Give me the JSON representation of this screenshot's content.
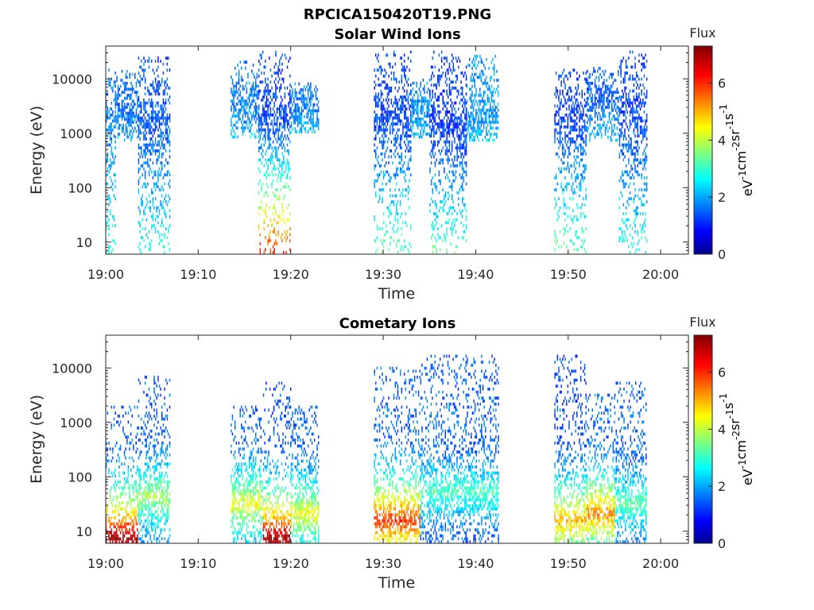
{
  "figure": {
    "title": "RPCICA150420T19.PNG",
    "colorbar_title": "Flux",
    "colorbar_unit_parts": [
      "eV",
      "-1",
      "cm",
      "-2",
      "sr",
      "-1",
      "s",
      "-1"
    ]
  },
  "chart_data": [
    {
      "type": "heatmap",
      "title": "Solar Wind Ions",
      "xlabel": "Time",
      "ylabel": "Energy (eV)",
      "y_scale": "log",
      "ylim": [
        6,
        40000
      ],
      "xlim": [
        "19:00",
        "20:03"
      ],
      "xticks": [
        "19:00",
        "19:10",
        "19:20",
        "19:30",
        "19:40",
        "19:50",
        "20:00"
      ],
      "yticks": [
        "10",
        "100",
        "1000",
        "10000"
      ],
      "colorbar": {
        "label": "Flux",
        "ticks": [
          "0",
          "2",
          "4",
          "6"
        ],
        "range": [
          0,
          7.3
        ],
        "colormap": "jet"
      },
      "bursts": [
        {
          "start": "19:00.0",
          "end": "19:01.0",
          "emax": 15000,
          "emin": 6,
          "peak_e": 2000,
          "peak_flux": 1.8,
          "low_flux": 3.0
        },
        {
          "start": "19:01.0",
          "end": "19:03.5",
          "emax": 15000,
          "emin": 700,
          "peak_e": 3000,
          "peak_flux": 1.7,
          "low_flux": 2.2
        },
        {
          "start": "19:03.5",
          "end": "19:07.0",
          "emax": 25000,
          "emin": 6,
          "peak_e": 1500,
          "peak_flux": 1.5,
          "low_flux": 3.0
        },
        {
          "start": "19:13.5",
          "end": "19:16.5",
          "emax": 20000,
          "emin": 800,
          "peak_e": 3000,
          "peak_flux": 1.8,
          "low_flux": 2.4
        },
        {
          "start": "19:16.5",
          "end": "19:20.0",
          "emax": 30000,
          "emin": 6,
          "peak_e": 2000,
          "peak_flux": 1.4,
          "low_flux": 6.2
        },
        {
          "start": "19:20.0",
          "end": "19:23.0",
          "emax": 8000,
          "emin": 1000,
          "peak_e": 2500,
          "peak_flux": 1.8,
          "low_flux": 2.3
        },
        {
          "start": "19:29.0",
          "end": "19:33.0",
          "emax": 30000,
          "emin": 6,
          "peak_e": 2000,
          "peak_flux": 1.4,
          "low_flux": 3.4
        },
        {
          "start": "19:33.0",
          "end": "19:35.0",
          "emax": 10000,
          "emin": 800,
          "peak_e": 3000,
          "peak_flux": 1.9,
          "low_flux": 2.3
        },
        {
          "start": "19:35.0",
          "end": "19:39.0",
          "emax": 30000,
          "emin": 6,
          "peak_e": 1500,
          "peak_flux": 1.3,
          "low_flux": 3.4
        },
        {
          "start": "19:39.0",
          "end": "19:42.5",
          "emax": 25000,
          "emin": 700,
          "peak_e": 1500,
          "peak_flux": 2.0,
          "low_flux": 2.4
        },
        {
          "start": "19:48.5",
          "end": "19:52.0",
          "emax": 15000,
          "emin": 6,
          "peak_e": 2500,
          "peak_flux": 1.3,
          "low_flux": 3.6
        },
        {
          "start": "19:52.0",
          "end": "19:55.5",
          "emax": 15000,
          "emin": 700,
          "peak_e": 4000,
          "peak_flux": 1.6,
          "low_flux": 2.3
        },
        {
          "start": "19:55.5",
          "end": "19:58.5",
          "emax": 30000,
          "emin": 6,
          "peak_e": 2000,
          "peak_flux": 1.4,
          "low_flux": 3.0
        }
      ]
    },
    {
      "type": "heatmap",
      "title": "Cometary Ions",
      "xlabel": "Time",
      "ylabel": "Energy (eV)",
      "y_scale": "log",
      "ylim": [
        6,
        40000
      ],
      "xlim": [
        "19:00",
        "20:03"
      ],
      "xticks": [
        "19:00",
        "19:10",
        "19:20",
        "19:30",
        "19:40",
        "19:50",
        "20:00"
      ],
      "yticks": [
        "10",
        "100",
        "1000",
        "10000"
      ],
      "colorbar": {
        "label": "Flux",
        "ticks": [
          "0",
          "2",
          "4",
          "6"
        ],
        "range": [
          0,
          7.3
        ],
        "colormap": "jet"
      },
      "bursts": [
        {
          "start": "19:00.0",
          "end": "19:03.5",
          "emax": 2000,
          "emin": 6,
          "peak_e": 7,
          "peak_flux": 7.2,
          "low_flux": 2.0
        },
        {
          "start": "19:03.5",
          "end": "19:07.0",
          "emax": 7000,
          "emin": 6,
          "peak_e": 40,
          "peak_flux": 4.0,
          "low_flux": 2.0
        },
        {
          "start": "19:13.5",
          "end": "19:17.0",
          "emax": 2000,
          "emin": 6,
          "peak_e": 30,
          "peak_flux": 4.5,
          "low_flux": 2.0
        },
        {
          "start": "19:17.0",
          "end": "19:20.0",
          "emax": 5000,
          "emin": 6,
          "peak_e": 7,
          "peak_flux": 7.2,
          "low_flux": 1.8
        },
        {
          "start": "19:20.0",
          "end": "19:23.0",
          "emax": 2000,
          "emin": 6,
          "peak_e": 20,
          "peak_flux": 4.5,
          "low_flux": 2.0
        },
        {
          "start": "19:29.0",
          "end": "19:34.0",
          "emax": 10000,
          "emin": 6,
          "peak_e": 15,
          "peak_flux": 6.2,
          "low_flux": 2.0
        },
        {
          "start": "19:34.0",
          "end": "19:42.5",
          "emax": 17000,
          "emin": 6,
          "peak_e": 50,
          "peak_flux": 3.3,
          "low_flux": 2.0
        },
        {
          "start": "19:48.5",
          "end": "19:52.0",
          "emax": 17000,
          "emin": 6,
          "peak_e": 15,
          "peak_flux": 5.2,
          "low_flux": 1.8
        },
        {
          "start": "19:52.0",
          "end": "19:55.0",
          "emax": 3000,
          "emin": 6,
          "peak_e": 20,
          "peak_flux": 5.5,
          "low_flux": 2.0
        },
        {
          "start": "19:55.0",
          "end": "19:58.5",
          "emax": 5000,
          "emin": 6,
          "peak_e": 30,
          "peak_flux": 3.5,
          "low_flux": 2.0
        }
      ]
    }
  ]
}
